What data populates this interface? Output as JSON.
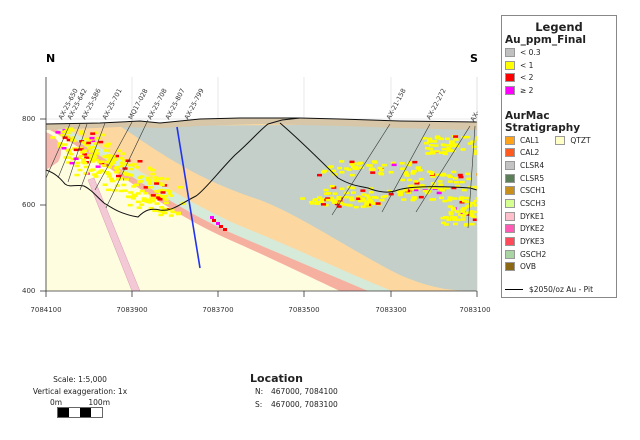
{
  "section": {
    "north_label": "N",
    "south_label": "S",
    "y_axis_ticks": [
      "800",
      "600",
      "400"
    ],
    "y_axis_values": [
      800,
      600,
      400
    ],
    "y_range": [
      400,
      900
    ],
    "x_axis_ticks": [
      "7084100",
      "7083900",
      "7083700",
      "7083500",
      "7083300",
      "7083100"
    ],
    "x_axis_values": [
      7084100,
      7083900,
      7083700,
      7083500,
      7083300,
      7083100
    ],
    "x_range": [
      7084100,
      7083100
    ],
    "drill_holes": [
      {
        "name": "AX-25-650"
      },
      {
        "name": "AX-25-642"
      },
      {
        "name": "AX-25-586"
      },
      {
        "name": "AX-25-701"
      },
      {
        "name": "MQ17-028"
      },
      {
        "name": "AX-25-708"
      },
      {
        "name": "AX-25-807"
      },
      {
        "name": "AX-25-799"
      },
      {
        "name": "AX-21-158"
      },
      {
        "name": "AX-22-272"
      },
      {
        "name": "AX-"
      }
    ]
  },
  "legend": {
    "title": "Legend",
    "au_title": "Au_ppm_Final",
    "au_items": [
      {
        "label": "< 0.3",
        "color": "#c0c0c0"
      },
      {
        "label": "< 1",
        "color": "#ffff00"
      },
      {
        "label": "< 2",
        "color": "#ff0000"
      },
      {
        "label": "≥ 2",
        "color": "#ff00ff"
      }
    ],
    "strat_title": "AurMac Stratigraphy",
    "strat_items": [
      {
        "label": "CAL1",
        "color": "#ffa31a"
      },
      {
        "label": "CAL2",
        "color": "#ff5a1f"
      },
      {
        "label": "CLSR4",
        "color": "#c3c3c3"
      },
      {
        "label": "CLSR5",
        "color": "#5c7f5a"
      },
      {
        "label": "CSCH1",
        "color": "#c8901a"
      },
      {
        "label": "CSCH3",
        "color": "#d6ff91"
      },
      {
        "label": "DYKE1",
        "color": "#ffc0cb"
      },
      {
        "label": "DYKE2",
        "color": "#ff5ab4"
      },
      {
        "label": "DYKE3",
        "color": "#ff4a5a"
      },
      {
        "label": "GSCH2",
        "color": "#a8d5a3"
      },
      {
        "label": "OVB",
        "color": "#8b6914"
      }
    ],
    "strat_extra": {
      "label": "QTZT",
      "color": "#ffffc8"
    },
    "pit_label": "$2050/oz Au - Pit"
  },
  "scale": {
    "scale_text": "Scale: 1:5,000",
    "exaggeration_text": "Vertical exaggeration: 1x",
    "left_label": "0m",
    "right_label": "100m"
  },
  "location": {
    "title": "Location",
    "rows": [
      {
        "key": "N:",
        "value": "467000, 7084100"
      },
      {
        "key": "S:",
        "value": "467000, 7083100"
      }
    ]
  }
}
